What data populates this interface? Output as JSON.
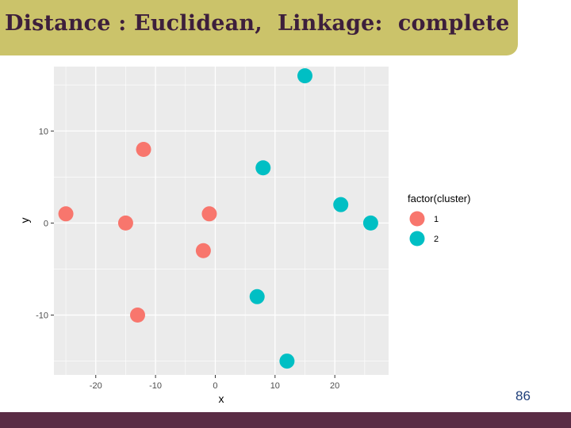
{
  "slide": {
    "title": "Distance : Euclidean,  Linkage:  complete",
    "page_number": "86"
  },
  "colors": {
    "banner": "#cbc36a",
    "title_text": "#3d1f3c",
    "bottom_bar": "#5a2c45",
    "panel": "#ebebeb",
    "cluster_1": "#f8766d",
    "cluster_2": "#00bfc4"
  },
  "chart_data": {
    "type": "scatter",
    "xlabel": "x",
    "ylabel": "y",
    "xlim": [
      -27,
      29
    ],
    "ylim": [
      -16.5,
      17
    ],
    "x_ticks": [
      -20,
      -10,
      0,
      10,
      20
    ],
    "y_ticks": [
      -10,
      0,
      10
    ],
    "grid": true,
    "legend_title": "factor(cluster)",
    "legend_position": "right",
    "series": [
      {
        "name": "1",
        "color": "#f8766d",
        "points": [
          {
            "x": -25,
            "y": 1
          },
          {
            "x": -15,
            "y": 0
          },
          {
            "x": -12,
            "y": 8
          },
          {
            "x": -13,
            "y": -10
          },
          {
            "x": -2,
            "y": -3
          },
          {
            "x": -1,
            "y": 1
          }
        ]
      },
      {
        "name": "2",
        "color": "#00bfc4",
        "points": [
          {
            "x": 15,
            "y": 16
          },
          {
            "x": 8,
            "y": 6
          },
          {
            "x": 21,
            "y": 2
          },
          {
            "x": 26,
            "y": 0
          },
          {
            "x": 7,
            "y": -8
          },
          {
            "x": 12,
            "y": -15
          }
        ]
      }
    ]
  }
}
